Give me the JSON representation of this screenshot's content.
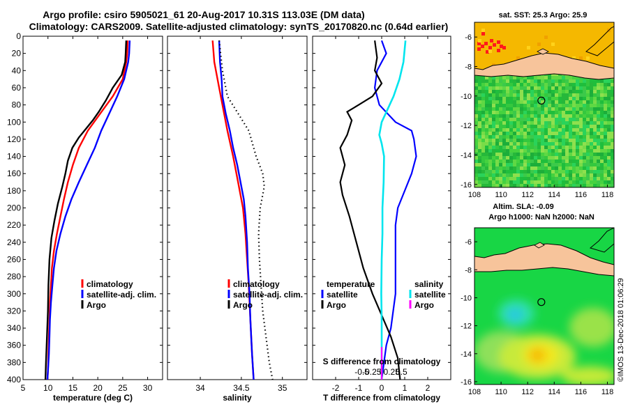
{
  "header": {
    "line1": "Argo profile: csiro 5905021_61 20-Aug-2017 10.31S 113.03E (DM data)",
    "line2": "Climatology: CARS2009. Satellite-adjusted climatology: synTS_20170820.nc (0.64d earlier)"
  },
  "credit": "©IMOS 13-Dec-2018 01:06:29",
  "colors": {
    "climatology": "#ff0000",
    "satellite": "#0000ff",
    "argo": "#000000",
    "salinity_satellite": "#00e5ee",
    "salinity_argo": "#ff00ff",
    "sea_warm": "#f5b800",
    "land": "#f7c49b",
    "sea_green": "#22c83a"
  },
  "chart_data": [
    {
      "type": "line",
      "name": "temperature",
      "xlabel": "temperature (deg C)",
      "ylabel": "depth",
      "xlim": [
        5,
        33
      ],
      "ylim": [
        0,
        400
      ],
      "xticks": [
        5,
        10,
        15,
        20,
        25,
        30
      ],
      "yticks": [
        0,
        20,
        40,
        60,
        80,
        100,
        120,
        140,
        160,
        180,
        200,
        220,
        240,
        260,
        280,
        300,
        320,
        340,
        360,
        380,
        400
      ],
      "legend": [
        "climatology",
        "satellite-adj. clim.",
        "Argo"
      ],
      "series": [
        {
          "name": "climatology",
          "color": "#ff0000",
          "points": [
            [
              26.0,
              5
            ],
            [
              25.9,
              20
            ],
            [
              25.7,
              30
            ],
            [
              25.0,
              50
            ],
            [
              23.0,
              70
            ],
            [
              20.5,
              90
            ],
            [
              18.0,
              110
            ],
            [
              16.2,
              130
            ],
            [
              15.0,
              150
            ],
            [
              14.0,
              170
            ],
            [
              13.2,
              190
            ],
            [
              12.5,
              210
            ],
            [
              11.8,
              230
            ],
            [
              11.2,
              250
            ],
            [
              10.8,
              270
            ],
            [
              10.6,
              290
            ],
            [
              10.4,
              310
            ],
            [
              10.3,
              330
            ],
            [
              10.2,
              350
            ],
            [
              10.1,
              370
            ],
            [
              10.0,
              390
            ],
            [
              9.9,
              400
            ]
          ]
        },
        {
          "name": "satellite-adj. clim.",
          "color": "#0000ff",
          "points": [
            [
              26.4,
              5
            ],
            [
              26.3,
              20
            ],
            [
              26.1,
              30
            ],
            [
              25.3,
              50
            ],
            [
              23.9,
              70
            ],
            [
              22.3,
              90
            ],
            [
              20.7,
              110
            ],
            [
              19.4,
              130
            ],
            [
              17.8,
              150
            ],
            [
              16.2,
              170
            ],
            [
              14.7,
              190
            ],
            [
              13.5,
              210
            ],
            [
              12.5,
              230
            ],
            [
              11.7,
              250
            ],
            [
              11.2,
              270
            ],
            [
              10.9,
              290
            ],
            [
              10.6,
              310
            ],
            [
              10.4,
              330
            ],
            [
              10.3,
              350
            ],
            [
              10.2,
              370
            ],
            [
              10.0,
              390
            ],
            [
              9.9,
              400
            ]
          ]
        },
        {
          "name": "Argo",
          "color": "#000000",
          "points": [
            [
              25.7,
              5
            ],
            [
              25.6,
              20
            ],
            [
              25.5,
              30
            ],
            [
              24.8,
              45
            ],
            [
              23.0,
              60
            ],
            [
              21.6,
              75
            ],
            [
              20.2,
              88
            ],
            [
              19.0,
              98
            ],
            [
              17.6,
              108
            ],
            [
              16.2,
              118
            ],
            [
              14.9,
              130
            ],
            [
              14.0,
              145
            ],
            [
              13.5,
              160
            ],
            [
              12.9,
              175
            ],
            [
              12.0,
              195
            ],
            [
              11.3,
              215
            ],
            [
              10.7,
              235
            ],
            [
              10.3,
              260
            ],
            [
              10.1,
              290
            ],
            [
              10.0,
              320
            ],
            [
              9.8,
              350
            ],
            [
              9.6,
              380
            ],
            [
              9.5,
              400
            ]
          ]
        }
      ]
    },
    {
      "type": "line",
      "name": "salinity",
      "xlabel": "salinity",
      "xlim": [
        33.6,
        35.3
      ],
      "ylim": [
        0,
        400
      ],
      "xticks": [
        34,
        34.5,
        35
      ],
      "xtick_labels": [
        "34",
        "34.5",
        "35"
      ],
      "legend": [
        "climatology",
        "satellite-adj. clim.",
        "Argo"
      ],
      "series": [
        {
          "name": "climatology",
          "color": "#ff0000",
          "points": [
            [
              34.15,
              5
            ],
            [
              34.17,
              30
            ],
            [
              34.22,
              55
            ],
            [
              34.27,
              80
            ],
            [
              34.33,
              110
            ],
            [
              34.4,
              140
            ],
            [
              34.46,
              170
            ],
            [
              34.52,
              200
            ],
            [
              34.55,
              230
            ],
            [
              34.57,
              260
            ],
            [
              34.59,
              290
            ],
            [
              34.61,
              330
            ],
            [
              34.63,
              370
            ],
            [
              34.65,
              400
            ]
          ]
        },
        {
          "name": "satellite-adj. clim.",
          "color": "#0000ff",
          "points": [
            [
              34.23,
              5
            ],
            [
              34.24,
              30
            ],
            [
              34.26,
              50
            ],
            [
              34.27,
              70
            ],
            [
              34.31,
              90
            ],
            [
              34.36,
              110
            ],
            [
              34.4,
              130
            ],
            [
              34.45,
              150
            ],
            [
              34.49,
              170
            ],
            [
              34.53,
              190
            ],
            [
              34.55,
              210
            ],
            [
              34.57,
              240
            ],
            [
              34.58,
              270
            ],
            [
              34.6,
              300
            ],
            [
              34.61,
              330
            ],
            [
              34.63,
              370
            ],
            [
              34.65,
              400
            ]
          ]
        },
        {
          "name": "Argo",
          "color": "#000000",
          "dashed": true,
          "points": [
            [
              34.23,
              5
            ],
            [
              34.27,
              40
            ],
            [
              34.33,
              70
            ],
            [
              34.46,
              90
            ],
            [
              34.59,
              110
            ],
            [
              34.68,
              140
            ],
            [
              34.76,
              160
            ],
            [
              34.78,
              175
            ],
            [
              34.73,
              200
            ],
            [
              34.71,
              230
            ],
            [
              34.72,
              260
            ],
            [
              34.74,
              290
            ],
            [
              34.76,
              320
            ],
            [
              34.8,
              350
            ],
            [
              34.84,
              380
            ],
            [
              34.88,
              400
            ]
          ]
        }
      ]
    },
    {
      "type": "line",
      "name": "difference",
      "xlabel": "T difference from climatology",
      "xlabel2": "S difference from climatology",
      "xlim": [
        -3,
        3
      ],
      "ylim": [
        0,
        400
      ],
      "xticks": [
        -2,
        -1,
        0,
        1,
        2
      ],
      "xtick_labels": [
        "-2",
        "-1",
        "0",
        "1",
        "2"
      ],
      "sticks": [
        -0.5,
        -0.25,
        0,
        0.25,
        0.5
      ],
      "stick_labels": [
        "-0.5",
        "-0.25",
        "0",
        "0.25",
        "0.5"
      ],
      "legend_left_title": "temperature",
      "legend_right_title": "salinity",
      "legend": [
        "satellite",
        "Argo"
      ],
      "series": [
        {
          "name": "T satellite",
          "color": "#0000ff",
          "points": [
            [
              0.0,
              5
            ],
            [
              0.2,
              20
            ],
            [
              -0.2,
              40
            ],
            [
              -0.3,
              60
            ],
            [
              -0.1,
              80
            ],
            [
              0.6,
              100
            ],
            [
              1.3,
              110
            ],
            [
              1.4,
              120
            ],
            [
              1.5,
              140
            ],
            [
              1.3,
              160
            ],
            [
              1.0,
              180
            ],
            [
              0.7,
              200
            ],
            [
              0.6,
              220
            ],
            [
              0.6,
              250
            ],
            [
              0.6,
              280
            ],
            [
              0.6,
              300
            ],
            [
              0.5,
              320
            ],
            [
              0.4,
              340
            ],
            [
              0.2,
              360
            ],
            [
              0.1,
              380
            ],
            [
              0.0,
              400
            ]
          ]
        },
        {
          "name": "T Argo",
          "color": "#000000",
          "points": [
            [
              -0.3,
              5
            ],
            [
              -0.2,
              25
            ],
            [
              -0.3,
              40
            ],
            [
              0.0,
              55
            ],
            [
              -0.4,
              70
            ],
            [
              -1.0,
              80
            ],
            [
              -1.5,
              88
            ],
            [
              -1.3,
              98
            ],
            [
              -1.5,
              115
            ],
            [
              -1.8,
              130
            ],
            [
              -1.6,
              150
            ],
            [
              -1.8,
              170
            ],
            [
              -1.7,
              185
            ],
            [
              -1.4,
              210
            ],
            [
              -1.1,
              240
            ],
            [
              -0.8,
              270
            ],
            [
              -0.4,
              300
            ],
            [
              0.0,
              325
            ],
            [
              0.4,
              350
            ],
            [
              0.7,
              375
            ],
            [
              0.8,
              400
            ]
          ]
        },
        {
          "name": "S satellite",
          "color": "#00e5ee",
          "points": [
            [
              0.6,
              5
            ],
            [
              0.55,
              30
            ],
            [
              0.45,
              50
            ],
            [
              0.3,
              70
            ],
            [
              0.1,
              90
            ],
            [
              0.0,
              100
            ],
            [
              -0.06,
              115
            ],
            [
              0.0,
              125
            ],
            [
              0.06,
              140
            ],
            [
              0.05,
              170
            ],
            [
              0.02,
              200
            ],
            [
              0.02,
              230
            ],
            [
              0.0,
              260
            ],
            [
              -0.01,
              300
            ],
            [
              0.0,
              330
            ],
            [
              0.0,
              360
            ],
            [
              0.0,
              400
            ]
          ]
        },
        {
          "name": "S Argo",
          "color": "#ff00ff",
          "points": [
            [
              0.0,
              362
            ],
            [
              0.0,
              400
            ]
          ]
        }
      ]
    },
    {
      "type": "heatmap",
      "name": "sst map",
      "title": "sat. SST: 25.3 Argo: 25.9",
      "xlim": [
        108,
        118.5
      ],
      "ylim": [
        -16.2,
        -5
      ],
      "xticks": [
        108,
        110,
        112,
        114,
        116,
        118
      ],
      "yticks": [
        -6,
        -8,
        -10,
        -12,
        -14,
        -16
      ],
      "marker": {
        "lon": 113.03,
        "lat": -10.31
      }
    },
    {
      "type": "heatmap",
      "name": "sla map",
      "title": "Altim. SLA: -0.09",
      "subtitle": "Argo h1000: NaN h2000: NaN",
      "xlim": [
        108,
        118.5
      ],
      "ylim": [
        -16.2,
        -5
      ],
      "xticks": [
        108,
        110,
        112,
        114,
        116,
        118
      ],
      "yticks": [
        -6,
        -8,
        -10,
        -12,
        -14,
        -16
      ],
      "marker": {
        "lon": 113.03,
        "lat": -10.31
      }
    }
  ]
}
